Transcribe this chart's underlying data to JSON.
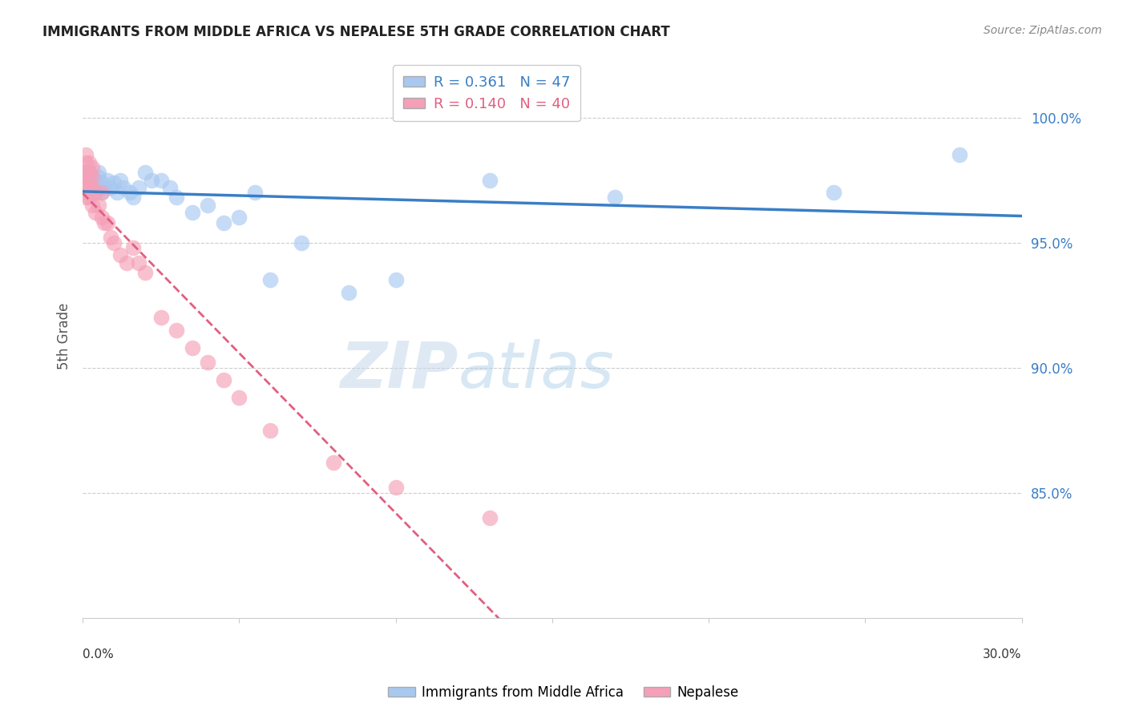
{
  "title": "IMMIGRANTS FROM MIDDLE AFRICA VS NEPALESE 5TH GRADE CORRELATION CHART",
  "source": "Source: ZipAtlas.com",
  "ylabel": "5th Grade",
  "yaxis_labels": [
    "100.0%",
    "95.0%",
    "90.0%",
    "85.0%"
  ],
  "yaxis_values": [
    1.0,
    0.95,
    0.9,
    0.85
  ],
  "xlim": [
    0.0,
    0.3
  ],
  "ylim": [
    0.8,
    1.025
  ],
  "blue_R": 0.361,
  "blue_N": 47,
  "pink_R": 0.14,
  "pink_N": 40,
  "blue_color": "#A8C8F0",
  "pink_color": "#F5A0B8",
  "blue_line_color": "#3A7EC6",
  "pink_line_color": "#E06080",
  "blue_points_x": [
    0.0,
    0.001,
    0.001,
    0.001,
    0.002,
    0.002,
    0.002,
    0.002,
    0.003,
    0.003,
    0.003,
    0.004,
    0.004,
    0.004,
    0.005,
    0.005,
    0.005,
    0.006,
    0.006,
    0.007,
    0.008,
    0.009,
    0.01,
    0.011,
    0.012,
    0.013,
    0.015,
    0.016,
    0.018,
    0.02,
    0.022,
    0.025,
    0.028,
    0.03,
    0.035,
    0.04,
    0.045,
    0.05,
    0.055,
    0.06,
    0.07,
    0.085,
    0.1,
    0.13,
    0.17,
    0.24,
    0.28
  ],
  "blue_points_y": [
    0.978,
    0.974,
    0.972,
    0.97,
    0.978,
    0.976,
    0.974,
    0.972,
    0.976,
    0.974,
    0.972,
    0.975,
    0.973,
    0.97,
    0.978,
    0.976,
    0.972,
    0.974,
    0.97,
    0.972,
    0.975,
    0.972,
    0.974,
    0.97,
    0.975,
    0.972,
    0.97,
    0.968,
    0.972,
    0.978,
    0.975,
    0.975,
    0.972,
    0.968,
    0.962,
    0.965,
    0.958,
    0.96,
    0.97,
    0.935,
    0.95,
    0.93,
    0.935,
    0.975,
    0.968,
    0.97,
    0.985
  ],
  "pink_points_x": [
    0.0,
    0.0,
    0.001,
    0.001,
    0.001,
    0.001,
    0.001,
    0.001,
    0.002,
    0.002,
    0.002,
    0.002,
    0.003,
    0.003,
    0.003,
    0.003,
    0.004,
    0.004,
    0.005,
    0.006,
    0.006,
    0.007,
    0.008,
    0.009,
    0.01,
    0.012,
    0.014,
    0.016,
    0.018,
    0.02,
    0.025,
    0.03,
    0.035,
    0.04,
    0.045,
    0.05,
    0.06,
    0.08,
    0.1,
    0.13
  ],
  "pink_points_y": [
    0.975,
    0.972,
    0.985,
    0.982,
    0.978,
    0.974,
    0.972,
    0.968,
    0.982,
    0.978,
    0.974,
    0.968,
    0.98,
    0.976,
    0.972,
    0.965,
    0.97,
    0.962,
    0.965,
    0.97,
    0.96,
    0.958,
    0.958,
    0.952,
    0.95,
    0.945,
    0.942,
    0.948,
    0.942,
    0.938,
    0.92,
    0.915,
    0.908,
    0.902,
    0.895,
    0.888,
    0.875,
    0.862,
    0.852,
    0.84
  ]
}
